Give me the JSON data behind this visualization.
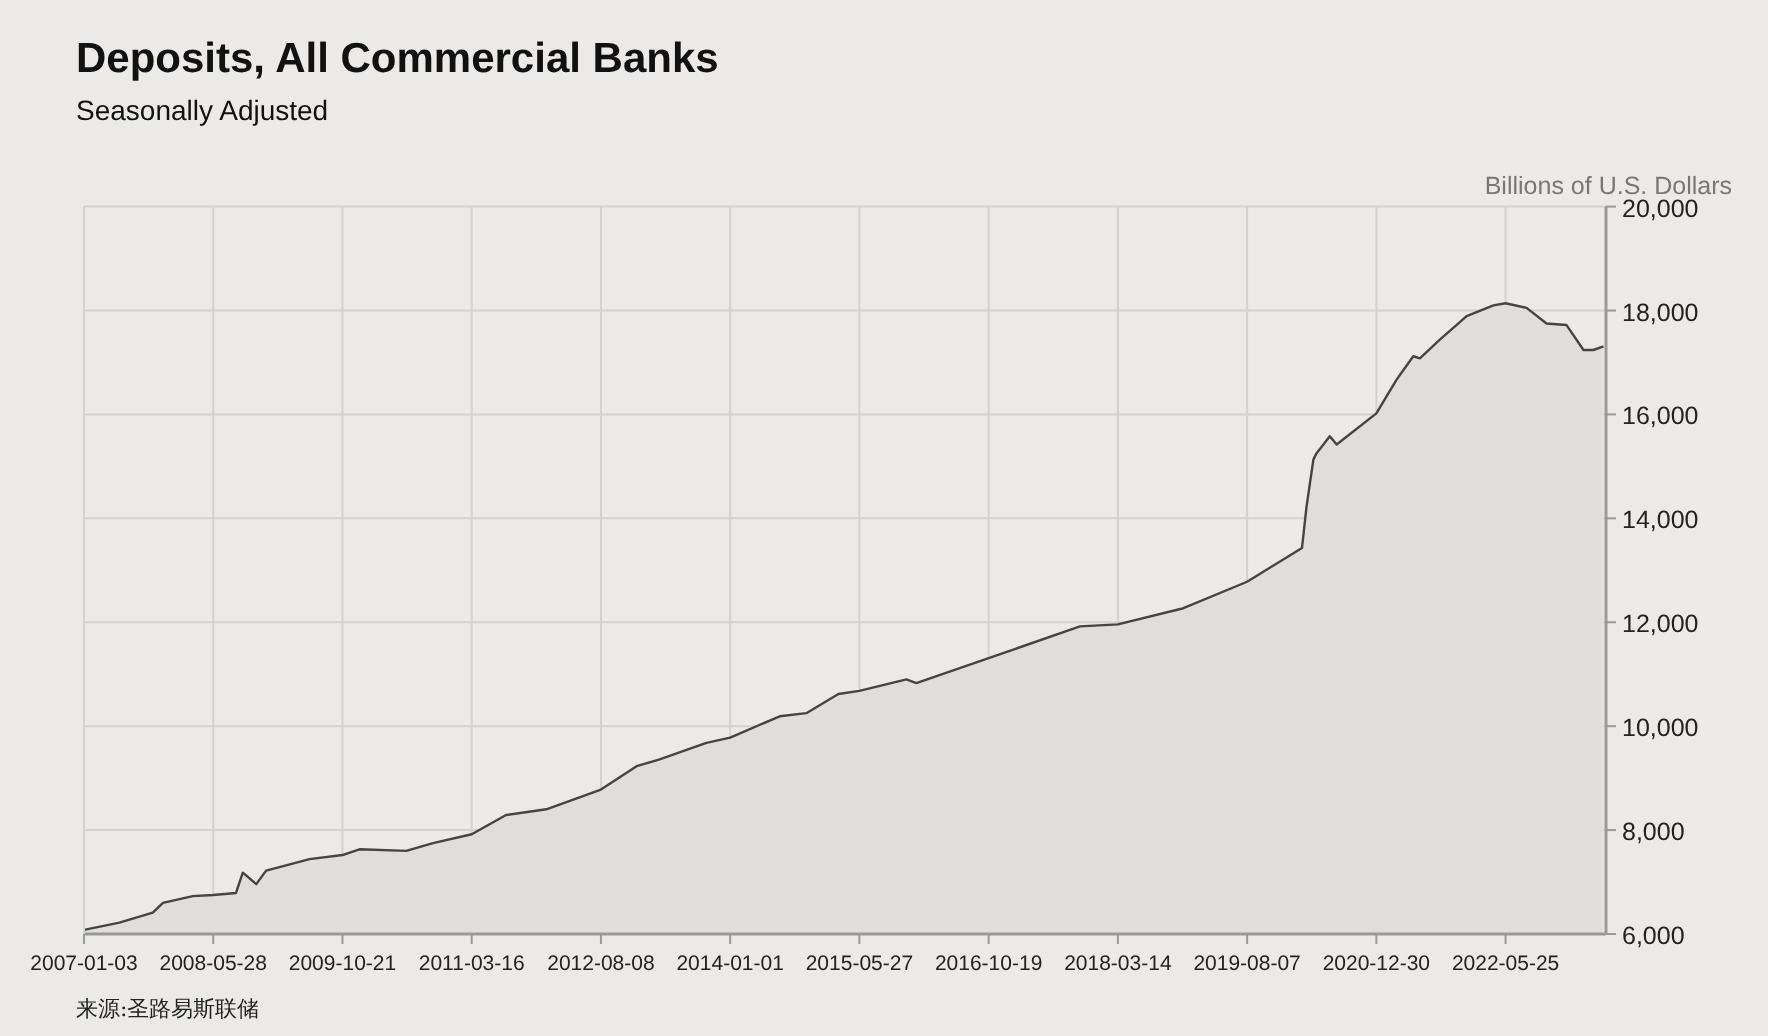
{
  "chart_data": {
    "type": "area",
    "title": "Deposits, All Commercial Banks",
    "subtitle": "Seasonally Adjusted",
    "ylabel": "Billions of U.S. Dollars",
    "annotations": [
      "来源:圣路易斯联储"
    ],
    "x": [
      "2007-01-03",
      "2007-05-23",
      "2007-10-02",
      "2007-11-11",
      "2008-03-08",
      "2008-05-28",
      "2008-08-26",
      "2008-09-22",
      "2008-11-14",
      "2008-12-23",
      "2009-06-13",
      "2009-10-21",
      "2009-12-27",
      "2010-06-30",
      "2010-10-14",
      "2011-03-16",
      "2011-07-30",
      "2012-01-05",
      "2012-08-08",
      "2012-12-27",
      "2013-03-28",
      "2013-09-29",
      "2014-01-01",
      "2014-07-16",
      "2014-10-29",
      "2015-03-05",
      "2015-05-27",
      "2015-11-29",
      "2016-01-07",
      "2016-10-19",
      "2017-10-15",
      "2018-03-14",
      "2018-11-28",
      "2019-08-07",
      "2020-03-11",
      "2020-03-29",
      "2020-04-25",
      "2020-05-07",
      "2020-06-29",
      "2020-07-26",
      "2020-12-30",
      "2021-03-20",
      "2021-05-25",
      "2021-06-20",
      "2021-09-07",
      "2021-12-22",
      "2022-04-07",
      "2022-05-25",
      "2022-08-16",
      "2022-11-03",
      "2023-01-21",
      "2023-03-29",
      "2023-05-07",
      "2023-06-16"
    ],
    "series": [
      {
        "color": "#444444",
        "values": [
          6080,
          6220,
          6410,
          6600,
          6730,
          6750,
          6790,
          7180,
          6960,
          7220,
          7440,
          7520,
          7630,
          7600,
          7750,
          7920,
          8290,
          8400,
          8780,
          9230,
          9360,
          9680,
          9780,
          10190,
          10250,
          10620,
          10680,
          10900,
          10830,
          11310,
          11920,
          11960,
          12270,
          12780,
          13430,
          14230,
          15130,
          15250,
          15580,
          15420,
          16020,
          16670,
          17120,
          17080,
          17440,
          17890,
          18100,
          18140,
          18050,
          17750,
          17720,
          17240,
          17240,
          17310
        ]
      }
    ],
    "xlim": [
      "2007-01-03",
      "2023-06-26"
    ],
    "xticks": [
      "2007-01-03",
      "2008-05-28",
      "2009-10-21",
      "2011-03-16",
      "2012-08-08",
      "2014-01-01",
      "2015-05-27",
      "2016-10-19",
      "2018-03-14",
      "2019-08-07",
      "2020-12-30",
      "2022-05-25"
    ],
    "ylim": [
      6000,
      20000
    ],
    "yticks": [
      {
        "value": 6000,
        "label": "6,000"
      },
      {
        "value": 8000,
        "label": "8,000"
      },
      {
        "value": 10000,
        "label": "10,000"
      },
      {
        "value": 12000,
        "label": "12,000"
      },
      {
        "value": 14000,
        "label": "14,000"
      },
      {
        "value": 16000,
        "label": "16,000"
      },
      {
        "value": 18000,
        "label": "18,000"
      },
      {
        "value": 20000,
        "label": "20,000"
      }
    ],
    "grid": true
  }
}
